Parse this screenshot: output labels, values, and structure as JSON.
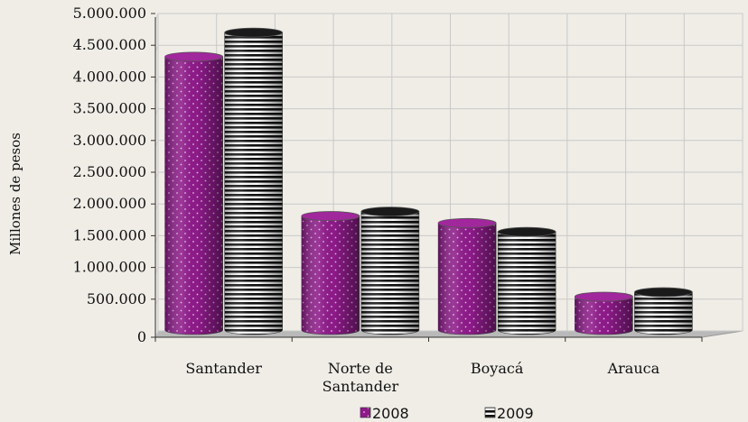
{
  "chart_data": {
    "type": "bar",
    "style": "3d-cylinder",
    "categories": [
      "Santander",
      "Norte de Santander",
      "Boyacá",
      "Arauca"
    ],
    "category_lines": [
      [
        "Santander"
      ],
      [
        "Norte de",
        "Santander"
      ],
      [
        "Boyacá"
      ],
      [
        "Arauca"
      ]
    ],
    "series": [
      {
        "name": "2008",
        "values": [
          4320000,
          1810000,
          1700000,
          540000
        ],
        "color": "#8e1a8a",
        "pattern": "dots"
      },
      {
        "name": "2009",
        "values": [
          4700000,
          1880000,
          1560000,
          610000
        ],
        "color": "#111111",
        "pattern": "horizontal-stripes"
      }
    ],
    "ylabel": "Millones de pesos",
    "ylim": [
      0,
      5000000
    ],
    "yticks": [
      0,
      500000,
      1000000,
      1500000,
      2000000,
      2500000,
      3000000,
      3500000,
      4000000,
      4500000,
      5000000
    ],
    "ytick_labels": [
      "0",
      "500.000",
      "1.000.000",
      "1.500.000",
      "2.000.000",
      "2.500.000",
      "3.000.000",
      "3.500.000",
      "4.000.000",
      "4.500.000",
      "5.000.000"
    ],
    "grid": true,
    "legend": "bottom"
  }
}
